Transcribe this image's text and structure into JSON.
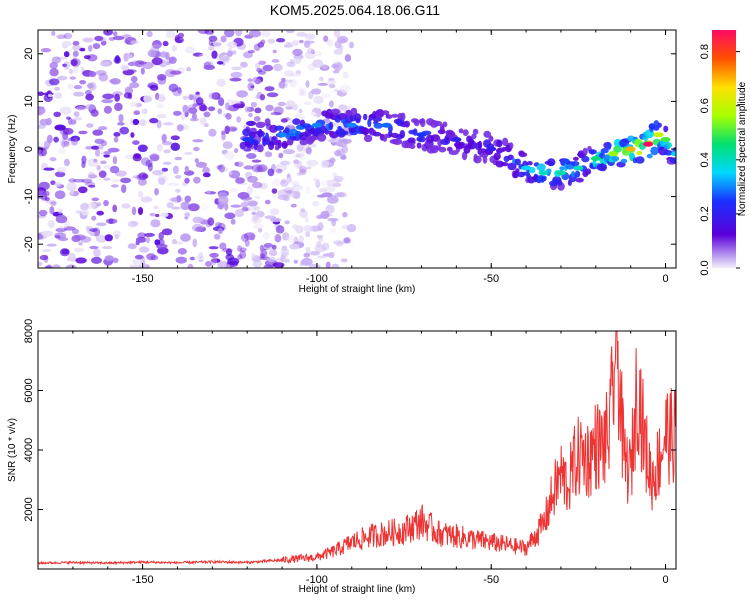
{
  "title": "KOM5.2025.064.18.06.G11",
  "chart_data": [
    {
      "type": "heatmap",
      "xlabel": "Height of straight line (km)",
      "ylabel": "Frequency (Hz)",
      "xlim": [
        -180,
        3
      ],
      "ylim": [
        -25,
        25
      ],
      "xticks": [
        -150,
        -100,
        -50,
        0
      ],
      "yticks": [
        -20,
        -10,
        0,
        10,
        20
      ],
      "colorbar": {
        "label": "Normalized spectral amplitude",
        "range": [
          0.0,
          0.88
        ],
        "ticks": [
          "0.0",
          "0.2",
          "0.4",
          "0.6",
          "0.8"
        ],
        "colormap": "rainbow (violet to red)"
      },
      "ridge": {
        "x": [
          -120,
          -110,
          -100,
          -90,
          -80,
          -70,
          -60,
          -50,
          -40,
          -35,
          -30,
          -25,
          -20,
          -15,
          -10,
          -5,
          -2,
          0,
          3
        ],
        "y": [
          2,
          3,
          5,
          5,
          5,
          3,
          2,
          0,
          -4,
          -5,
          -5,
          -4,
          -2,
          -1,
          0,
          1,
          3,
          2,
          -1
        ],
        "peak_amplitude": [
          0.25,
          0.3,
          0.3,
          0.3,
          0.28,
          0.25,
          0.2,
          0.2,
          0.35,
          0.4,
          0.42,
          0.4,
          0.45,
          0.55,
          0.7,
          0.88,
          0.6,
          0.5,
          0.35
        ]
      },
      "noise_region_x": [
        -180,
        -110
      ],
      "noise_amplitude_max": 0.15
    },
    {
      "type": "line",
      "xlabel": "Height of straight line (km)",
      "ylabel": "SNR (10 * v/v)",
      "xlim": [
        -180,
        3
      ],
      "ylim": [
        0,
        8000
      ],
      "xticks": [
        -150,
        -100,
        -50,
        0
      ],
      "yticks": [
        2000,
        4000,
        6000,
        8000
      ],
      "color": "#ee3333",
      "series": [
        {
          "x": [
            -180,
            -170,
            -160,
            -150,
            -140,
            -130,
            -120,
            -110,
            -100,
            -95,
            -90,
            -85,
            -80,
            -75,
            -70,
            -65,
            -60,
            -55,
            -50,
            -45,
            -40,
            -35,
            -32,
            -30,
            -28,
            -26,
            -24,
            -22,
            -20,
            -18,
            -16,
            -14,
            -12,
            -10,
            -8,
            -6,
            -4,
            -2,
            0,
            2,
            3
          ],
          "y": [
            200,
            220,
            200,
            230,
            210,
            240,
            220,
            300,
            400,
            600,
            900,
            1100,
            1200,
            1300,
            1600,
            1200,
            1100,
            1000,
            900,
            800,
            700,
            1500,
            2600,
            3200,
            2800,
            3600,
            3900,
            3700,
            4200,
            4100,
            4600,
            7900,
            3700,
            3200,
            6400,
            4200,
            3000,
            3600,
            4600,
            4400,
            4600
          ]
        }
      ]
    }
  ]
}
